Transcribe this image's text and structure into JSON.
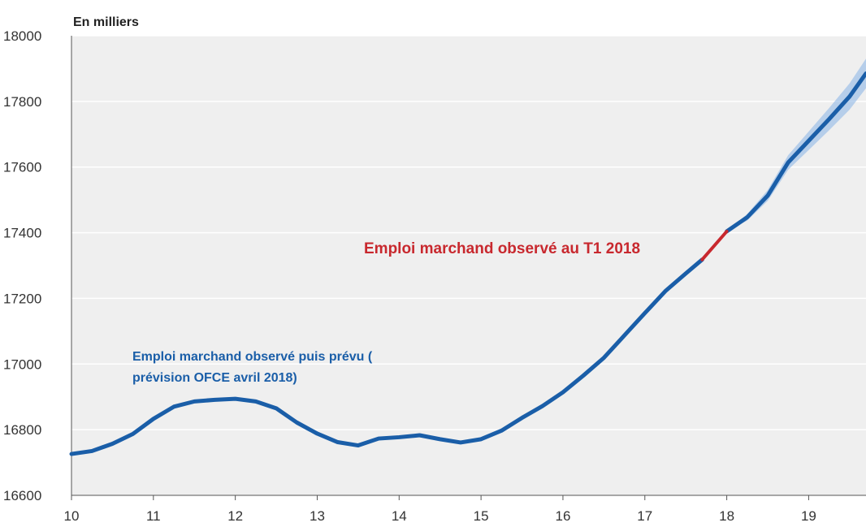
{
  "chart_data": {
    "type": "line",
    "unit_label": "En milliers",
    "x_ticks": [
      "10",
      "11",
      "12",
      "13",
      "14",
      "15",
      "16",
      "17",
      "18",
      "19"
    ],
    "y_ticks": [
      "16600",
      "16800",
      "17000",
      "17200",
      "17400",
      "17600",
      "17800",
      "18000"
    ],
    "xlim": [
      10,
      19.7
    ],
    "ylim": [
      16600,
      18000
    ],
    "grid": true,
    "colors": {
      "main": "#1a5ea8",
      "observed_last": "#c8282e",
      "band": "#8fb8e6",
      "plot_bg": "#efefef",
      "gridline": "#ffffff",
      "annotation_blue": "#1a5ea8",
      "annotation_red": "#c8282e"
    },
    "series": [
      {
        "x": [
          10.0,
          10.25,
          10.5,
          10.75,
          11.0,
          11.25,
          11.5,
          11.75,
          12.0,
          12.25,
          12.5,
          12.75,
          13.0,
          13.25,
          13.5,
          13.75,
          14.0,
          14.25,
          14.5,
          14.75,
          15.0,
          15.25,
          15.5,
          15.75,
          16.0,
          16.25,
          16.5,
          16.75,
          17.0,
          17.25,
          17.5,
          17.7
        ],
        "values": [
          16726,
          16735,
          16757,
          16787,
          16833,
          16870,
          16886,
          16891,
          16894,
          16886,
          16865,
          16822,
          16788,
          16762,
          16752,
          16773,
          16777,
          16783,
          16771,
          16761,
          16771,
          16797,
          16836,
          16872,
          16914,
          16965,
          17019,
          17087,
          17155,
          17222,
          17276,
          17318
        ]
      },
      {
        "x": [
          17.7,
          18.0
        ],
        "values": [
          17318,
          17404
        ]
      },
      {
        "x": [
          18.0,
          18.25,
          18.5,
          18.75,
          19.0,
          19.25,
          19.5,
          19.7
        ],
        "values": [
          17404,
          17447,
          17513,
          17614,
          17680,
          17746,
          17815,
          17885
        ],
        "band": {
          "lower": [
            17404,
            17437,
            17497,
            17592,
            17652,
            17712,
            17775,
            17840
          ],
          "upper": [
            17404,
            17457,
            17530,
            17636,
            17708,
            17780,
            17855,
            17930
          ]
        }
      }
    ],
    "annotations": [
      {
        "lines": [
          "Emploi marchand observé puis prévu (",
          "prévision OFCE avril 2018)"
        ]
      },
      {
        "lines": [
          "Emploi marchand observé au T1 2018"
        ]
      }
    ]
  }
}
